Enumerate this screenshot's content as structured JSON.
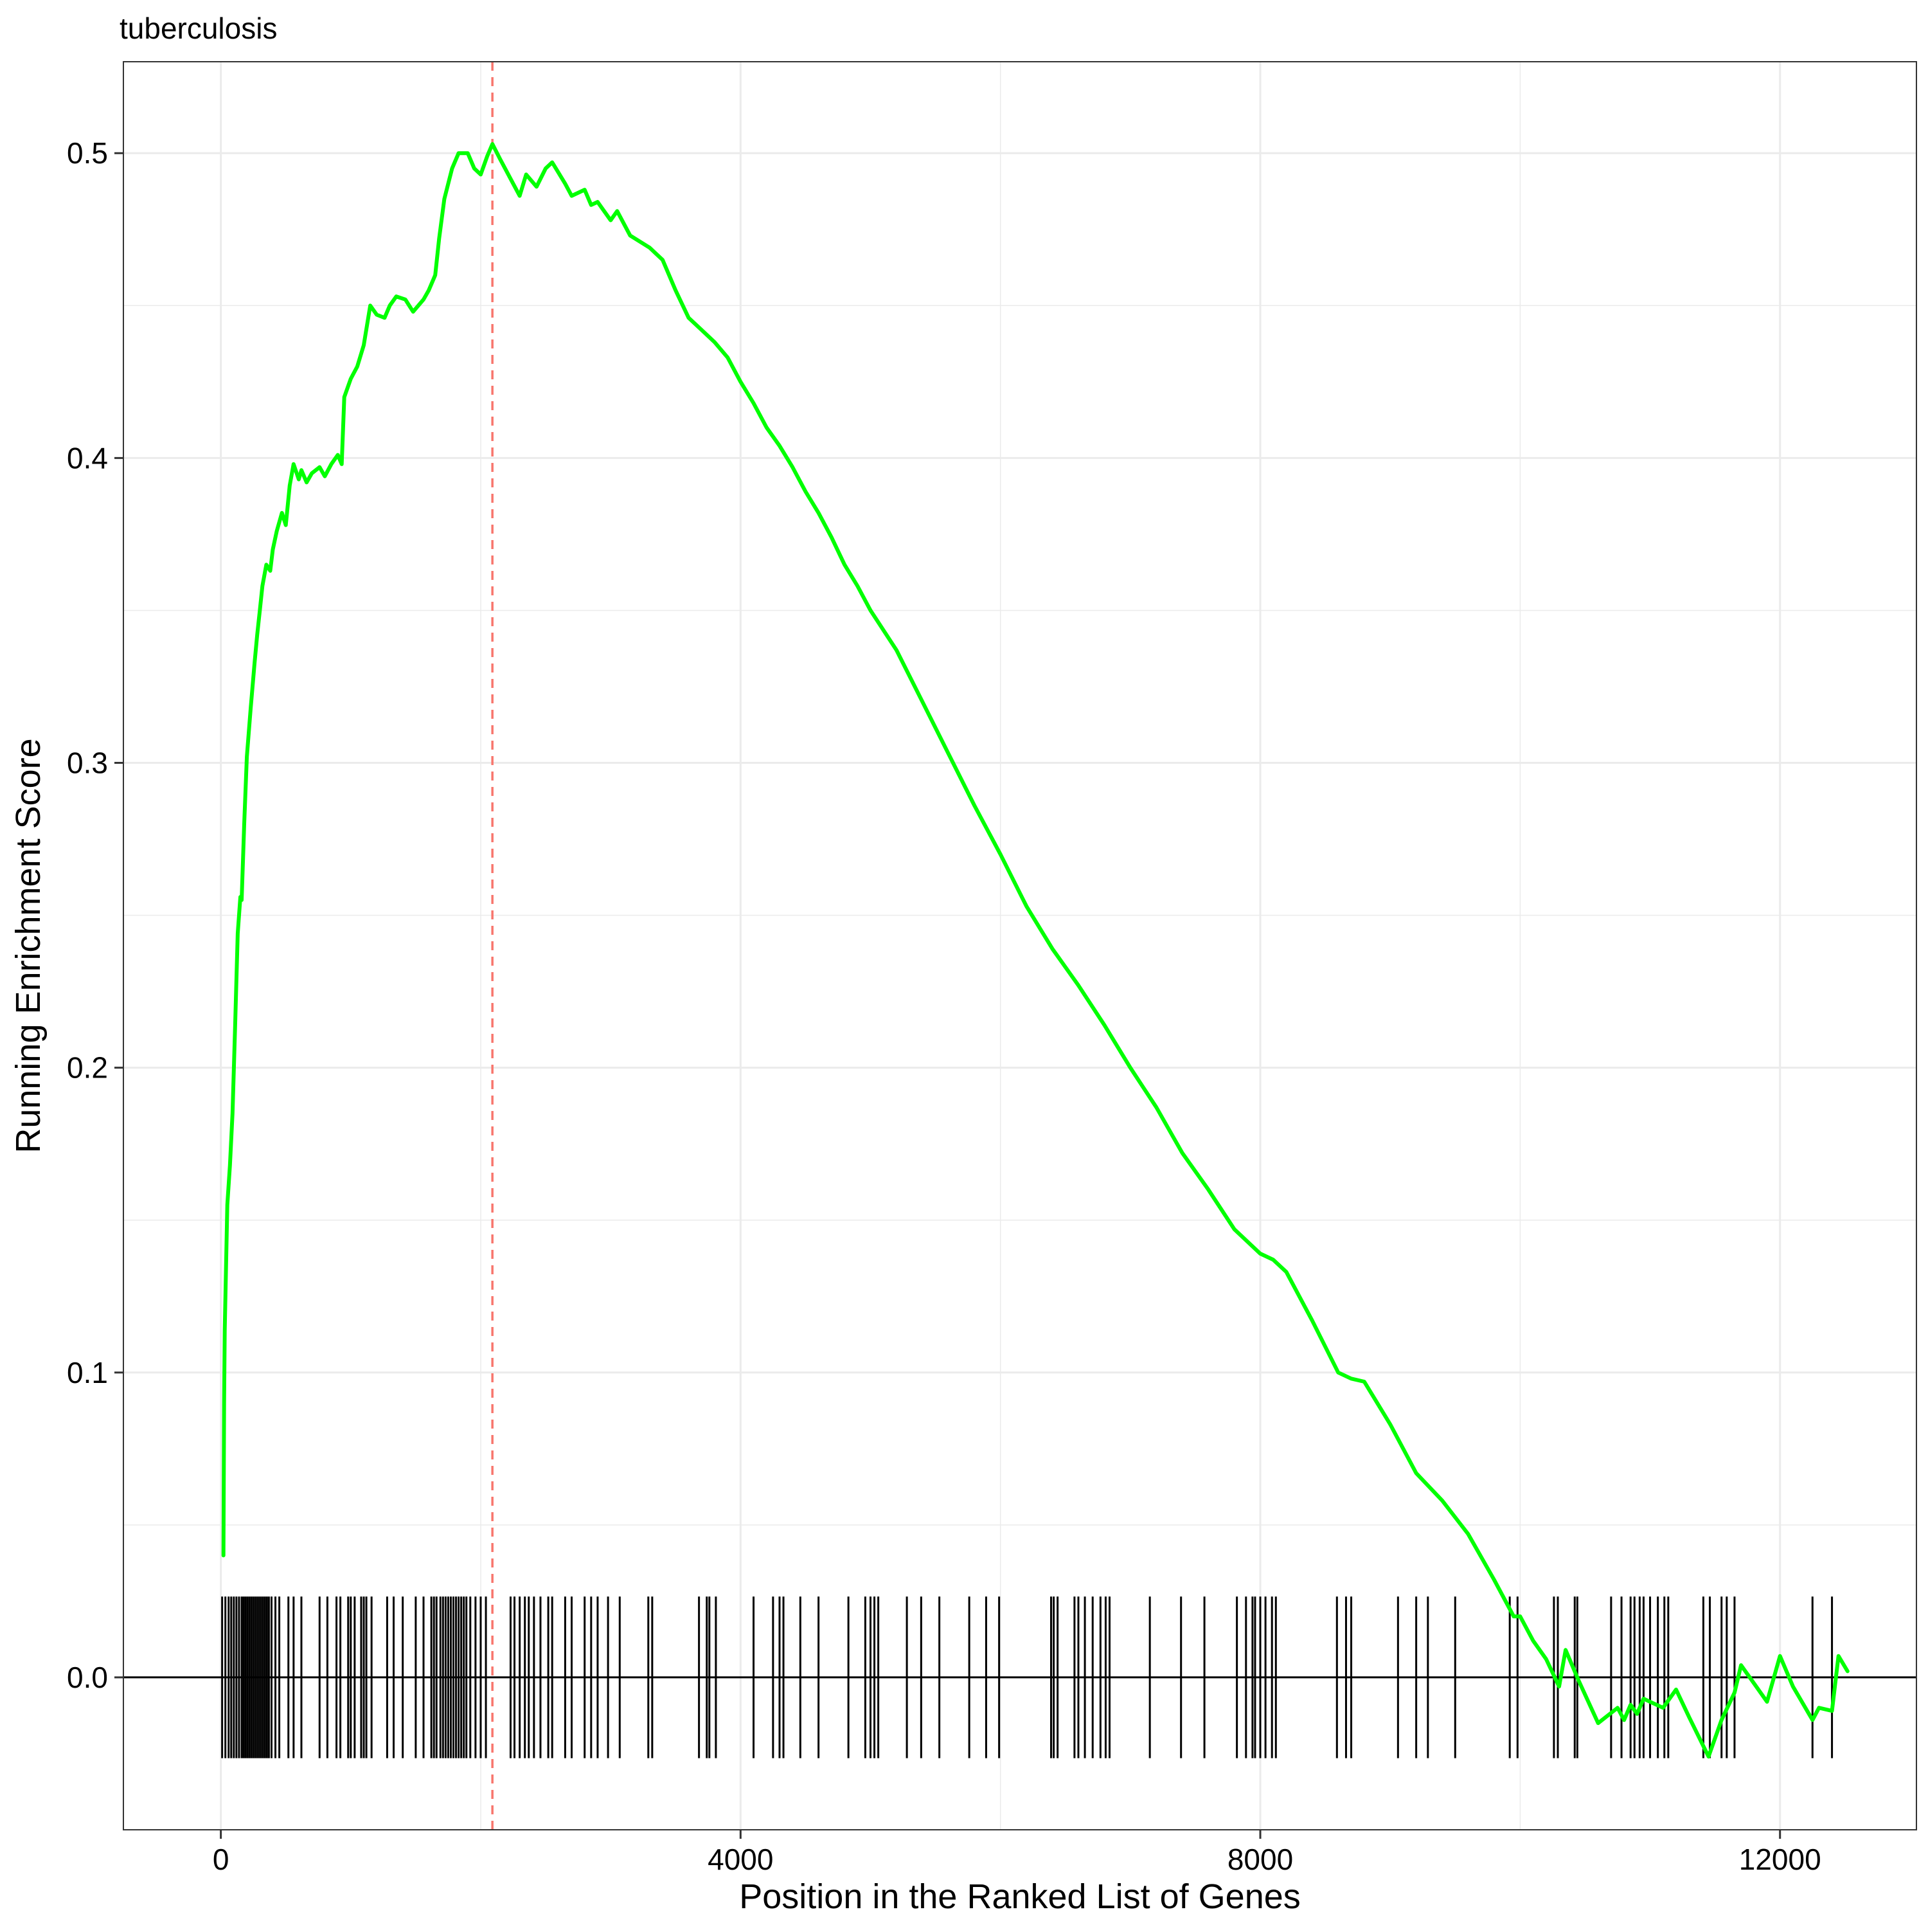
{
  "chart_data": {
    "type": "line",
    "title": "tuberculosis",
    "xlabel": "Position in the Ranked List of Genes",
    "ylabel": "Running Enrichment Score",
    "xlim": [
      -750,
      13050
    ],
    "ylim": [
      -0.05,
      0.53
    ],
    "x_ticks": [
      0,
      4000,
      8000,
      12000
    ],
    "x_tick_labels": [
      "0",
      "4000",
      "8000",
      "12000"
    ],
    "y_ticks": [
      0.0,
      0.1,
      0.2,
      0.3,
      0.4,
      0.5
    ],
    "y_tick_labels": [
      "0.0",
      "0.1",
      "0.2",
      "0.3",
      "0.4",
      "0.5"
    ],
    "grid": true,
    "legend": "none",
    "colors": {
      "line": "#00FF00",
      "peak_marker": "#F8766D",
      "hits": "#000000",
      "zero_line": "#000000",
      "grid": "#EBEBEB",
      "panel_border": "#333333"
    },
    "peak_x": 2090,
    "series": [
      {
        "x": [
          20,
          25,
          30,
          50,
          70,
          90,
          110,
          130,
          150,
          160,
          180,
          200,
          230,
          260,
          280,
          300,
          320,
          350,
          380,
          400,
          430,
          470,
          500,
          530,
          560,
          600,
          620,
          660,
          700,
          760,
          800,
          850,
          900,
          930,
          950,
          1000,
          1050,
          1100,
          1150,
          1200,
          1260,
          1300,
          1350,
          1420,
          1480,
          1560,
          1600,
          1650,
          1680,
          1720,
          1780,
          1830,
          1900,
          1950,
          2000,
          2050,
          2090,
          2150,
          2250,
          2300,
          2350,
          2430,
          2500,
          2550,
          2650,
          2700,
          2800,
          2850,
          2900,
          3000,
          3050,
          3150,
          3300,
          3400,
          3500,
          3600,
          3700,
          3800,
          3900,
          4000,
          4100,
          4200,
          4300,
          4400,
          4500,
          4600,
          4700,
          4800,
          4900,
          5000,
          5200,
          5400,
          5600,
          5800,
          6000,
          6200,
          6400,
          6600,
          6800,
          7000,
          7200,
          7400,
          7600,
          7800,
          8000,
          8100,
          8200,
          8400,
          8600,
          8700,
          8800,
          9000,
          9200,
          9400,
          9600,
          9800,
          9950,
          10000,
          10100,
          10200,
          10300,
          10350,
          10450,
          10600,
          10750,
          10800,
          10850,
          10900,
          10950,
          11000,
          11100,
          11200,
          11300,
          11450,
          11500,
          11550,
          11650,
          11700,
          11800,
          11900,
          12000,
          12100,
          12250,
          12300,
          12400,
          12450,
          12520
        ],
        "y": [
          0.04,
          0.09,
          0.114,
          0.155,
          0.168,
          0.185,
          0.214,
          0.244,
          0.256,
          0.255,
          0.28,
          0.302,
          0.318,
          0.333,
          0.342,
          0.35,
          0.358,
          0.365,
          0.363,
          0.37,
          0.376,
          0.382,
          0.378,
          0.391,
          0.398,
          0.393,
          0.396,
          0.392,
          0.395,
          0.397,
          0.394,
          0.398,
          0.401,
          0.398,
          0.42,
          0.426,
          0.43,
          0.437,
          0.45,
          0.447,
          0.446,
          0.45,
          0.453,
          0.452,
          0.448,
          0.452,
          0.455,
          0.46,
          0.472,
          0.485,
          0.495,
          0.5,
          0.5,
          0.495,
          0.493,
          0.499,
          0.503,
          0.498,
          0.49,
          0.486,
          0.493,
          0.489,
          0.495,
          0.497,
          0.49,
          0.486,
          0.488,
          0.483,
          0.484,
          0.478,
          0.481,
          0.473,
          0.469,
          0.465,
          0.455,
          0.446,
          0.442,
          0.438,
          0.433,
          0.425,
          0.418,
          0.41,
          0.404,
          0.397,
          0.389,
          0.382,
          0.374,
          0.365,
          0.358,
          0.35,
          0.337,
          0.32,
          0.303,
          0.286,
          0.27,
          0.253,
          0.239,
          0.227,
          0.214,
          0.2,
          0.187,
          0.172,
          0.16,
          0.147,
          0.139,
          0.137,
          0.133,
          0.117,
          0.1,
          0.098,
          0.097,
          0.083,
          0.067,
          0.058,
          0.047,
          0.032,
          0.02,
          0.02,
          0.012,
          0.006,
          -0.003,
          0.009,
          -0.001,
          -0.015,
          -0.01,
          -0.014,
          -0.009,
          -0.012,
          -0.007,
          -0.008,
          -0.01,
          -0.004,
          -0.013,
          -0.026,
          -0.02,
          -0.014,
          -0.005,
          0.004,
          -0.002,
          -0.008,
          0.007,
          -0.003,
          -0.014,
          -0.01,
          -0.011,
          0.007,
          0.002
        ]
      }
    ],
    "hits": [
      10,
      35,
      60,
      80,
      100,
      120,
      140,
      160,
      175,
      190,
      205,
      220,
      235,
      250,
      265,
      280,
      295,
      310,
      325,
      340,
      355,
      370,
      390,
      420,
      450,
      520,
      560,
      620,
      760,
      820,
      890,
      920,
      980,
      1000,
      1030,
      1080,
      1100,
      1120,
      1160,
      1280,
      1330,
      1400,
      1500,
      1560,
      1620,
      1640,
      1660,
      1690,
      1710,
      1730,
      1750,
      1770,
      1790,
      1810,
      1830,
      1850,
      1870,
      1890,
      1920,
      1960,
      2000,
      2040,
      2230,
      2260,
      2300,
      2340,
      2370,
      2410,
      2460,
      2520,
      2550,
      2650,
      2700,
      2800,
      2850,
      2900,
      2980,
      3070,
      3290,
      3320,
      3680,
      3740,
      3760,
      3810,
      4100,
      4250,
      4300,
      4330,
      4460,
      4600,
      4830,
      4960,
      5000,
      5030,
      5060,
      5280,
      5390,
      5530,
      5760,
      5890,
      5990,
      6390,
      6410,
      6440,
      6570,
      6600,
      6650,
      6710,
      6770,
      6810,
      6840,
      7150,
      7390,
      7570,
      7820,
      7890,
      7940,
      7960,
      8000,
      8040,
      8090,
      8120,
      8590,
      8660,
      8700,
      9060,
      9200,
      9290,
      9500,
      9920,
      9980,
      10260,
      10290,
      10420,
      10440,
      10700,
      10780,
      10850,
      10880,
      10920,
      10950,
      11000,
      11060,
      11110,
      11140,
      11410,
      11460,
      11550,
      11590,
      11650,
      12250,
      12400
    ]
  }
}
